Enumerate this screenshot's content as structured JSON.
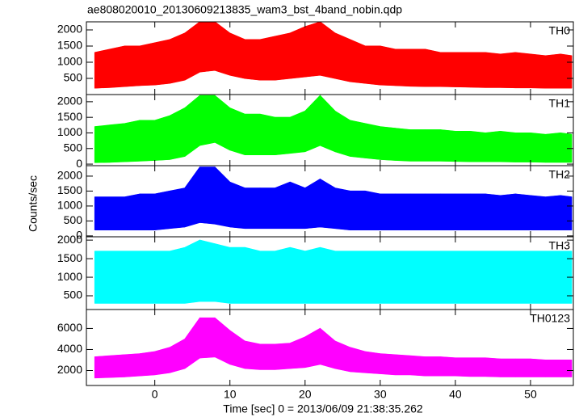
{
  "title": "ae808020010_20130609213835_wam3_bst_4band_nobin.qdp",
  "xlabel": "Time [sec] 0 = 2013/06/09 21:38:35.262",
  "ylabel": "Counts/sec",
  "xlim": [
    -9.1,
    55.7
  ],
  "xticks": [
    0,
    10,
    20,
    30,
    40,
    50
  ],
  "chart_data": [
    {
      "type": "band",
      "label": "TH0",
      "color": "#ff0000",
      "ylim": [
        0,
        2250
      ],
      "yticks": [
        500,
        1000,
        1500,
        2000
      ],
      "x": [
        -8,
        -6,
        -4,
        -2,
        0,
        2,
        4,
        6,
        8,
        10,
        12,
        14,
        16,
        18,
        20,
        22,
        24,
        26,
        28,
        30,
        32,
        34,
        36,
        38,
        40,
        42,
        44,
        46,
        48,
        50,
        52,
        54,
        55.5
      ],
      "low": [
        200,
        220,
        250,
        280,
        300,
        350,
        450,
        700,
        750,
        600,
        500,
        450,
        450,
        500,
        550,
        600,
        500,
        400,
        350,
        300,
        280,
        260,
        250,
        250,
        240,
        230,
        220,
        220,
        210,
        210,
        200,
        200,
        200
      ],
      "high": [
        1300,
        1400,
        1500,
        1500,
        1600,
        1700,
        1900,
        2250,
        2250,
        1900,
        1700,
        1700,
        1800,
        1900,
        2100,
        2250,
        1900,
        1700,
        1500,
        1500,
        1400,
        1400,
        1400,
        1300,
        1300,
        1300,
        1300,
        1250,
        1300,
        1250,
        1200,
        1250,
        1200
      ]
    },
    {
      "type": "band",
      "label": "TH1",
      "color": "#00ff00",
      "ylim": [
        -50,
        2230
      ],
      "yticks": [
        0,
        500,
        1000,
        1500,
        2000
      ],
      "x": [
        -8,
        -6,
        -4,
        -2,
        0,
        2,
        4,
        6,
        8,
        10,
        12,
        14,
        16,
        18,
        20,
        22,
        24,
        26,
        28,
        30,
        32,
        34,
        36,
        38,
        40,
        42,
        44,
        46,
        48,
        50,
        52,
        54,
        55.5
      ],
      "low": [
        50,
        60,
        80,
        100,
        120,
        150,
        250,
        600,
        700,
        450,
        300,
        300,
        300,
        350,
        400,
        600,
        400,
        250,
        200,
        150,
        120,
        100,
        100,
        100,
        90,
        80,
        80,
        80,
        70,
        70,
        60,
        60,
        60
      ],
      "high": [
        1200,
        1250,
        1300,
        1400,
        1400,
        1550,
        1800,
        2200,
        2200,
        1800,
        1600,
        1600,
        1500,
        1500,
        1700,
        2200,
        1700,
        1400,
        1300,
        1200,
        1150,
        1100,
        1100,
        1100,
        1050,
        1050,
        1000,
        1050,
        1000,
        1000,
        950,
        1000,
        950
      ]
    },
    {
      "type": "band",
      "label": "TH2",
      "color": "#0000ff",
      "ylim": [
        -30,
        2350
      ],
      "yticks": [
        0,
        500,
        1000,
        1500,
        2000
      ],
      "x": [
        -8,
        -6,
        -4,
        -2,
        0,
        2,
        4,
        6,
        8,
        10,
        12,
        14,
        16,
        18,
        20,
        22,
        24,
        26,
        28,
        30,
        32,
        34,
        36,
        38,
        40,
        42,
        44,
        46,
        48,
        50,
        52,
        54,
        55.5
      ],
      "low": [
        200,
        200,
        200,
        200,
        200,
        250,
        300,
        450,
        400,
        300,
        250,
        250,
        250,
        250,
        250,
        300,
        250,
        200,
        200,
        200,
        200,
        200,
        200,
        200,
        200,
        200,
        200,
        200,
        200,
        200,
        200,
        200,
        200
      ],
      "high": [
        1300,
        1300,
        1300,
        1400,
        1400,
        1500,
        1600,
        2300,
        2300,
        1800,
        1600,
        1600,
        1600,
        1800,
        1600,
        1900,
        1600,
        1500,
        1500,
        1400,
        1400,
        1400,
        1400,
        1400,
        1400,
        1400,
        1400,
        1350,
        1400,
        1350,
        1300,
        1350,
        1300
      ]
    },
    {
      "type": "band",
      "label": "TH3",
      "color": "#00ffff",
      "ylim": [
        130,
        2090
      ],
      "yticks": [
        500,
        1000,
        1500,
        2000
      ],
      "x": [
        -8,
        -6,
        -4,
        -2,
        0,
        2,
        4,
        6,
        8,
        10,
        12,
        14,
        16,
        18,
        20,
        22,
        24,
        26,
        28,
        30,
        32,
        34,
        36,
        38,
        40,
        42,
        44,
        46,
        48,
        50,
        52,
        54,
        55.5
      ],
      "low": [
        300,
        300,
        300,
        300,
        300,
        300,
        300,
        350,
        350,
        300,
        300,
        300,
        300,
        300,
        300,
        300,
        300,
        300,
        300,
        300,
        300,
        300,
        300,
        300,
        300,
        300,
        300,
        300,
        300,
        300,
        300,
        300,
        300
      ],
      "high": [
        1700,
        1700,
        1700,
        1700,
        1700,
        1700,
        1800,
        2000,
        1900,
        1800,
        1800,
        1700,
        1700,
        1800,
        1700,
        1800,
        1700,
        1700,
        1700,
        1700,
        1700,
        1700,
        1700,
        1700,
        1700,
        1700,
        1700,
        1700,
        1700,
        1700,
        1700,
        1700,
        1700
      ]
    },
    {
      "type": "band",
      "label": "TH0123",
      "color": "#ff00ff",
      "ylim": [
        580,
        7800
      ],
      "yticks": [
        2000,
        4000,
        6000
      ],
      "x": [
        -8,
        -6,
        -4,
        -2,
        0,
        2,
        4,
        6,
        8,
        10,
        12,
        14,
        16,
        18,
        20,
        22,
        24,
        26,
        28,
        30,
        32,
        34,
        36,
        38,
        40,
        42,
        44,
        46,
        48,
        50,
        52,
        54,
        55.5
      ],
      "low": [
        1300,
        1350,
        1400,
        1500,
        1600,
        1800,
        2200,
        3200,
        3300,
        2600,
        2200,
        2100,
        2100,
        2200,
        2300,
        2600,
        2200,
        1900,
        1800,
        1700,
        1600,
        1600,
        1500,
        1500,
        1500,
        1450,
        1450,
        1400,
        1400,
        1400,
        1400,
        1400,
        1400
      ],
      "high": [
        3300,
        3400,
        3500,
        3600,
        3800,
        4200,
        5000,
        7000,
        7000,
        5800,
        4800,
        4500,
        4500,
        4600,
        5200,
        6000,
        4800,
        4200,
        3800,
        3600,
        3500,
        3400,
        3300,
        3300,
        3200,
        3200,
        3200,
        3100,
        3100,
        3100,
        3000,
        3000,
        3000
      ]
    }
  ]
}
